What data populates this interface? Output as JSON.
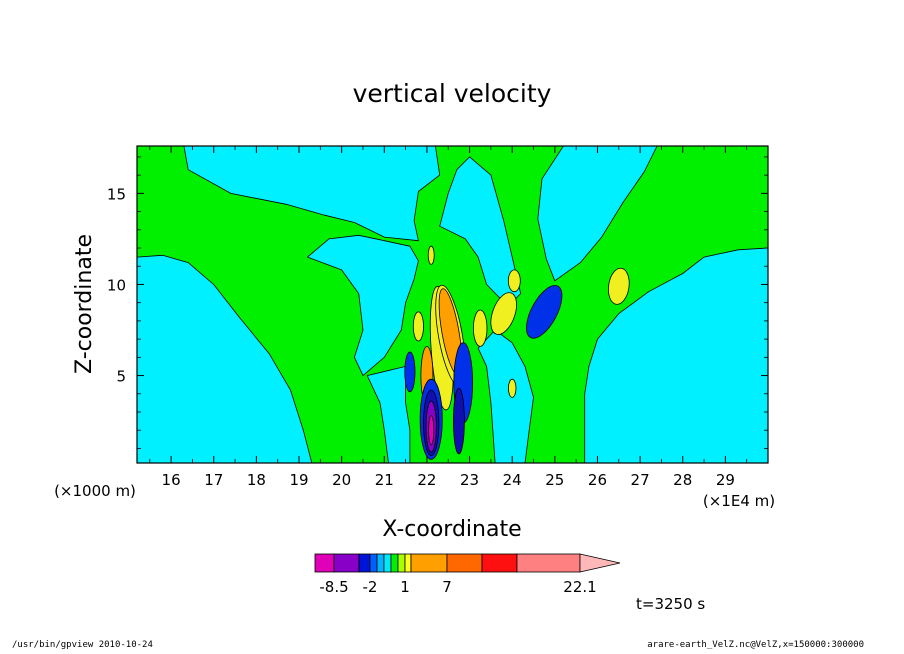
{
  "chart_data": {
    "type": "contour",
    "title": "vertical velocity",
    "xlabel": "X-coordinate",
    "ylabel": "Z-coordinate",
    "x_unit_label": "(×1E4 m)",
    "y_unit_label": "(×1000 m)",
    "xlim": [
      15.2,
      30.0
    ],
    "ylim": [
      0.2,
      17.6
    ],
    "x_ticks": [
      16,
      17,
      18,
      19,
      20,
      21,
      22,
      23,
      24,
      25,
      26,
      27,
      28,
      29
    ],
    "y_ticks": [
      5,
      10,
      15
    ],
    "colorbar": {
      "tick_labels": [
        "-8.5",
        "-2",
        "1",
        "7",
        "22.1"
      ],
      "colors": [
        "#e000b8",
        "#8800c8",
        "#0014d8",
        "#0060ff",
        "#00b4ff",
        "#00e8ff",
        "#00f000",
        "#a8ff00",
        "#ffff20",
        "#ffa000",
        "#ff6800",
        "#ff1010",
        "#ff8080",
        "#ffb8b8"
      ]
    },
    "time_label": "t=3250 s",
    "colors": {
      "background_field": "#00f0ff",
      "green": "#00f000",
      "yellow": "#f0f020",
      "orange": "#ffa000",
      "blue": "#0030e8",
      "dark_blue": "#1010b0",
      "purple": "#8800c8",
      "magenta": "#e000b8"
    },
    "field": {
      "cyan_regions": [
        {
          "name": "left",
          "pts": [
            [
              15.2,
              11.5
            ],
            [
              15.8,
              11.6
            ],
            [
              16.4,
              11.2
            ],
            [
              17.0,
              10.0
            ],
            [
              17.6,
              8.2
            ],
            [
              18.3,
              6.2
            ],
            [
              18.8,
              4.2
            ],
            [
              19.1,
              2.0
            ],
            [
              19.3,
              0.2
            ],
            [
              15.2,
              0.2
            ]
          ]
        },
        {
          "name": "top-left",
          "pts": [
            [
              16.3,
              17.6
            ],
            [
              16.4,
              16.3
            ],
            [
              17.4,
              15.0
            ],
            [
              18.7,
              14.4
            ],
            [
              19.6,
              13.8
            ],
            [
              20.3,
              13.4
            ],
            [
              21.0,
              12.6
            ],
            [
              21.8,
              12.4
            ],
            [
              21.7,
              13.5
            ],
            [
              21.8,
              15.1
            ],
            [
              22.3,
              16.0
            ],
            [
              22.2,
              17.6
            ]
          ]
        },
        {
          "name": "center-left",
          "pts": [
            [
              19.2,
              11.5
            ],
            [
              19.7,
              12.5
            ],
            [
              20.4,
              12.7
            ],
            [
              21.0,
              12.4
            ],
            [
              21.6,
              12.1
            ],
            [
              21.8,
              11.3
            ],
            [
              21.7,
              10.3
            ],
            [
              21.5,
              9.0
            ],
            [
              21.4,
              7.5
            ],
            [
              21.0,
              6.0
            ],
            [
              20.5,
              5.0
            ],
            [
              20.3,
              6.0
            ],
            [
              20.5,
              7.5
            ],
            [
              20.4,
              9.5
            ],
            [
              20.0,
              10.8
            ]
          ]
        },
        {
          "name": "tail-left",
          "pts": [
            [
              20.6,
              5.0
            ],
            [
              20.9,
              3.5
            ],
            [
              21.0,
              2.0
            ],
            [
              21.1,
              0.2
            ],
            [
              21.6,
              0.2
            ],
            [
              21.6,
              2.0
            ],
            [
              21.5,
              3.5
            ],
            [
              21.5,
              5.5
            ]
          ]
        },
        {
          "name": "upper-center",
          "pts": [
            [
              22.3,
              13.2
            ],
            [
              22.5,
              15.0
            ],
            [
              22.7,
              16.3
            ],
            [
              23.0,
              17.0
            ],
            [
              23.5,
              16.0
            ],
            [
              23.8,
              13.5
            ],
            [
              24.0,
              11.5
            ],
            [
              24.2,
              9.5
            ],
            [
              23.9,
              8.8
            ],
            [
              23.4,
              10.0
            ],
            [
              23.2,
              11.5
            ],
            [
              22.9,
              12.5
            ]
          ]
        },
        {
          "name": "right",
          "pts": [
            [
              30.0,
              12.0
            ],
            [
              29.3,
              11.9
            ],
            [
              28.5,
              11.5
            ],
            [
              28.0,
              10.6
            ],
            [
              27.2,
              9.6
            ],
            [
              26.5,
              8.4
            ],
            [
              26.0,
              7.0
            ],
            [
              25.8,
              5.5
            ],
            [
              25.7,
              4.0
            ],
            [
              25.7,
              0.2
            ],
            [
              30.0,
              0.2
            ]
          ]
        },
        {
          "name": "right-upper",
          "pts": [
            [
              25.2,
              17.6
            ],
            [
              24.7,
              15.8
            ],
            [
              24.6,
              13.6
            ],
            [
              24.8,
              11.4
            ],
            [
              25.0,
              10.2
            ],
            [
              25.6,
              11.2
            ],
            [
              26.1,
              12.6
            ],
            [
              26.6,
              14.5
            ],
            [
              27.1,
              16.2
            ],
            [
              27.4,
              17.6
            ]
          ]
        },
        {
          "name": "lower-center",
          "pts": [
            [
              23.2,
              6.5
            ],
            [
              23.4,
              5.5
            ],
            [
              23.5,
              3.5
            ],
            [
              23.6,
              0.2
            ],
            [
              24.3,
              0.2
            ],
            [
              24.4,
              2.0
            ],
            [
              24.5,
              3.8
            ],
            [
              24.3,
              5.5
            ],
            [
              24.0,
              6.8
            ],
            [
              23.6,
              7.5
            ]
          ]
        }
      ],
      "cells": [
        {
          "cx": 22.35,
          "cy": 6.5,
          "rx": 0.25,
          "ry": 3.4,
          "rot": -4,
          "color": "yellow"
        },
        {
          "cx": 22.55,
          "cy": 7.2,
          "rx": 0.28,
          "ry": 2.8,
          "rot": -10,
          "color": "yellow"
        },
        {
          "cx": 22.55,
          "cy": 7.4,
          "rx": 0.2,
          "ry": 2.4,
          "rot": -10,
          "color": "orange"
        },
        {
          "cx": 22.0,
          "cy": 5.0,
          "rx": 0.14,
          "ry": 1.6,
          "rot": 0,
          "color": "orange"
        },
        {
          "cx": 22.1,
          "cy": 2.6,
          "rx": 0.26,
          "ry": 2.2,
          "rot": 0,
          "color": "blue"
        },
        {
          "cx": 22.1,
          "cy": 2.4,
          "rx": 0.18,
          "ry": 1.8,
          "rot": 0,
          "color": "dark_blue"
        },
        {
          "cx": 22.1,
          "cy": 2.2,
          "rx": 0.12,
          "ry": 1.4,
          "rot": 0,
          "color": "purple"
        },
        {
          "cx": 22.1,
          "cy": 2.0,
          "rx": 0.06,
          "ry": 0.8,
          "rot": 0,
          "color": "magenta"
        },
        {
          "cx": 22.85,
          "cy": 4.6,
          "rx": 0.22,
          "ry": 2.2,
          "rot": 0,
          "color": "blue"
        },
        {
          "cx": 22.75,
          "cy": 2.5,
          "rx": 0.13,
          "ry": 1.8,
          "rot": 0,
          "color": "dark_blue"
        },
        {
          "cx": 21.6,
          "cy": 5.2,
          "rx": 0.12,
          "ry": 1.1,
          "rot": 0,
          "color": "blue"
        },
        {
          "cx": 24.75,
          "cy": 8.5,
          "rx": 0.3,
          "ry": 1.6,
          "rot": 28,
          "color": "blue"
        },
        {
          "cx": 26.5,
          "cy": 9.9,
          "rx": 0.24,
          "ry": 1.0,
          "rot": 8,
          "color": "yellow"
        },
        {
          "cx": 24.05,
          "cy": 10.2,
          "rx": 0.14,
          "ry": 0.6,
          "rot": 0,
          "color": "yellow"
        },
        {
          "cx": 23.8,
          "cy": 8.4,
          "rx": 0.26,
          "ry": 1.2,
          "rot": 20,
          "color": "yellow"
        },
        {
          "cx": 23.25,
          "cy": 7.6,
          "rx": 0.16,
          "ry": 1.0,
          "rot": 0,
          "color": "yellow"
        },
        {
          "cx": 24.0,
          "cy": 4.3,
          "rx": 0.09,
          "ry": 0.5,
          "rot": 0,
          "color": "yellow"
        },
        {
          "cx": 22.1,
          "cy": 11.6,
          "rx": 0.07,
          "ry": 0.5,
          "rot": 0,
          "color": "yellow"
        },
        {
          "cx": 21.8,
          "cy": 7.7,
          "rx": 0.12,
          "ry": 0.8,
          "rot": 0,
          "color": "yellow"
        }
      ]
    }
  },
  "footer": {
    "left": "/usr/bin/gpview  2010-10-24",
    "right": "arare-earth_VelZ.nc@VelZ,x=150000:300000"
  }
}
